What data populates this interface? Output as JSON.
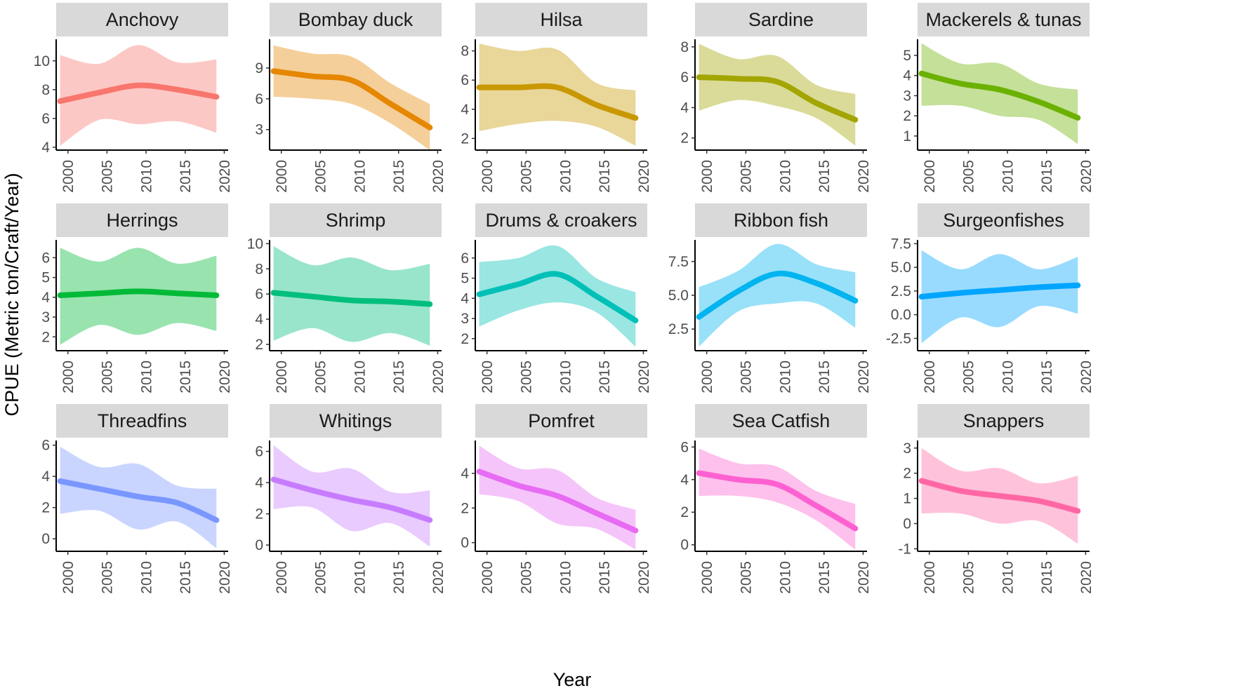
{
  "chart_data": {
    "type": "area",
    "figure": "faceted smoothed trends with confidence ribbons",
    "xlabel": "Year",
    "ylabel": "CPUE (Metric ton/Craft/Year)",
    "x_ticks": [
      "2000",
      "2005",
      "2010",
      "2015",
      "2020"
    ],
    "xlim": [
      1998.5,
      2020.5
    ],
    "strip_background": "#d9d9d9",
    "panels": [
      {
        "name": "Anchovy",
        "color": "#F8766D",
        "ylim": [
          3.8,
          11.5
        ],
        "yticks": [
          4,
          6,
          8,
          10
        ],
        "x": [
          1999,
          2004,
          2009,
          2014,
          2019
        ],
        "fit": [
          7.2,
          7.8,
          8.3,
          8.0,
          7.5
        ],
        "lower": [
          4.1,
          5.9,
          5.6,
          5.8,
          5.0
        ],
        "upper": [
          10.4,
          9.8,
          11.1,
          9.9,
          10.1
        ]
      },
      {
        "name": "Bombay duck",
        "color": "#E58700",
        "ylim": [
          1.0,
          11.8
        ],
        "yticks": [
          3,
          6,
          9
        ],
        "x": [
          1999,
          2004,
          2009,
          2014,
          2019
        ],
        "fit": [
          8.7,
          8.2,
          7.8,
          5.5,
          3.2
        ],
        "lower": [
          6.2,
          6.0,
          5.5,
          3.6,
          1.0
        ],
        "upper": [
          11.2,
          10.4,
          10.1,
          7.5,
          5.5
        ]
      },
      {
        "name": "Hilsa",
        "color": "#C99800",
        "ylim": [
          1.2,
          8.8
        ],
        "yticks": [
          2,
          4,
          6,
          8
        ],
        "x": [
          1999,
          2004,
          2009,
          2014,
          2019
        ],
        "fit": [
          5.5,
          5.5,
          5.5,
          4.3,
          3.4
        ],
        "lower": [
          2.5,
          3.0,
          3.2,
          2.8,
          1.5
        ],
        "upper": [
          8.5,
          8.0,
          8.1,
          5.8,
          5.3
        ]
      },
      {
        "name": "Sardine",
        "color": "#A3A500",
        "ylim": [
          1.2,
          8.5
        ],
        "yticks": [
          2,
          4,
          6,
          8
        ],
        "x": [
          1999,
          2004,
          2009,
          2014,
          2019
        ],
        "fit": [
          6.0,
          5.9,
          5.7,
          4.3,
          3.2
        ],
        "lower": [
          3.8,
          4.5,
          4.1,
          3.3,
          1.5
        ],
        "upper": [
          8.2,
          7.2,
          7.4,
          5.5,
          4.9
        ]
      },
      {
        "name": "Mackerels & tunas",
        "color": "#6BB100",
        "ylim": [
          0.3,
          5.8
        ],
        "yticks": [
          1,
          2,
          3,
          4,
          5
        ],
        "x": [
          1999,
          2004,
          2009,
          2014,
          2019
        ],
        "fit": [
          4.1,
          3.6,
          3.3,
          2.7,
          1.9
        ],
        "lower": [
          2.5,
          2.5,
          2.0,
          1.8,
          0.6
        ],
        "upper": [
          5.6,
          4.6,
          4.6,
          3.6,
          3.3
        ]
      },
      {
        "name": "Herrings",
        "color": "#00BA38",
        "ylim": [
          1.3,
          6.9
        ],
        "yticks": [
          2,
          3,
          4,
          5,
          6
        ],
        "x": [
          1999,
          2004,
          2009,
          2014,
          2019
        ],
        "fit": [
          4.1,
          4.2,
          4.3,
          4.2,
          4.1
        ],
        "lower": [
          1.6,
          2.6,
          2.1,
          2.7,
          2.3
        ],
        "upper": [
          6.5,
          5.8,
          6.5,
          5.7,
          6.1
        ]
      },
      {
        "name": "Shrimp",
        "color": "#00BF7D",
        "ylim": [
          1.5,
          10.3
        ],
        "yticks": [
          2,
          4,
          6,
          8,
          10
        ],
        "x": [
          1999,
          2004,
          2009,
          2014,
          2019
        ],
        "fit": [
          6.1,
          5.8,
          5.5,
          5.4,
          5.2
        ],
        "lower": [
          2.3,
          3.3,
          2.2,
          2.9,
          1.9
        ],
        "upper": [
          9.8,
          8.3,
          8.9,
          7.9,
          8.4
        ]
      },
      {
        "name": "Drums & croakers",
        "color": "#00C0B8",
        "ylim": [
          1.4,
          6.9
        ],
        "yticks": [
          2,
          3,
          4,
          5,
          6
        ],
        "x": [
          1999,
          2004,
          2009,
          2014,
          2019
        ],
        "fit": [
          4.2,
          4.7,
          5.2,
          4.1,
          2.9
        ],
        "lower": [
          2.6,
          3.4,
          3.8,
          3.3,
          1.6
        ],
        "upper": [
          5.8,
          6.0,
          6.6,
          5.0,
          4.3
        ]
      },
      {
        "name": "Ribbon fish",
        "color": "#00B4EF",
        "ylim": [
          0.9,
          9.1
        ],
        "yticks": [
          2.5,
          5.0,
          7.5
        ],
        "x": [
          1999,
          2004,
          2009,
          2014,
          2019
        ],
        "fit": [
          3.4,
          5.3,
          6.6,
          5.9,
          4.6
        ],
        "lower": [
          1.2,
          3.8,
          4.4,
          4.4,
          2.6
        ],
        "upper": [
          5.6,
          6.8,
          8.8,
          7.3,
          6.7
        ]
      },
      {
        "name": "Surgeonfishes",
        "color": "#00A5FF",
        "ylim": [
          -3.8,
          7.9
        ],
        "yticks": [
          -2.5,
          0.0,
          2.5,
          5.0,
          7.5
        ],
        "x": [
          1999,
          2004,
          2009,
          2014,
          2019
        ],
        "fit": [
          1.9,
          2.3,
          2.6,
          2.9,
          3.1
        ],
        "lower": [
          -3.0,
          -0.3,
          -1.3,
          0.9,
          0.1
        ],
        "upper": [
          6.8,
          4.8,
          6.4,
          4.8,
          6.1
        ]
      },
      {
        "name": "Threadfins",
        "color": "#7997FF",
        "ylim": [
          -0.8,
          6.3
        ],
        "yticks": [
          0,
          2,
          4,
          6
        ],
        "x": [
          1999,
          2004,
          2009,
          2014,
          2019
        ],
        "fit": [
          3.7,
          3.2,
          2.7,
          2.3,
          1.2
        ],
        "lower": [
          1.6,
          1.8,
          0.6,
          1.1,
          -0.6
        ],
        "upper": [
          5.9,
          4.6,
          4.8,
          3.4,
          3.2
        ]
      },
      {
        "name": "Whitings",
        "color": "#C77CFF",
        "ylim": [
          -0.4,
          6.7
        ],
        "yticks": [
          0,
          2,
          4,
          6
        ],
        "x": [
          1999,
          2004,
          2009,
          2014,
          2019
        ],
        "fit": [
          4.2,
          3.5,
          2.9,
          2.4,
          1.6
        ],
        "lower": [
          2.3,
          2.4,
          0.9,
          1.4,
          -0.1
        ],
        "upper": [
          6.4,
          4.7,
          4.9,
          3.4,
          3.5
        ]
      },
      {
        "name": "Pomfret",
        "color": "#E76BF3",
        "ylim": [
          -0.5,
          5.9
        ],
        "yticks": [
          0,
          2,
          4
        ],
        "x": [
          1999,
          2004,
          2009,
          2014,
          2019
        ],
        "fit": [
          4.1,
          3.3,
          2.7,
          1.7,
          0.7
        ],
        "lower": [
          2.8,
          2.4,
          1.1,
          0.8,
          -0.4
        ],
        "upper": [
          5.6,
          4.3,
          4.2,
          2.6,
          1.9
        ]
      },
      {
        "name": "Sea Catfish",
        "color": "#FD61D1",
        "ylim": [
          -0.4,
          6.4
        ],
        "yticks": [
          0,
          2,
          4,
          6
        ],
        "x": [
          1999,
          2004,
          2009,
          2014,
          2019
        ],
        "fit": [
          4.4,
          4.0,
          3.7,
          2.4,
          1.0
        ],
        "lower": [
          3.0,
          3.0,
          2.6,
          1.5,
          -0.3
        ],
        "upper": [
          5.9,
          5.0,
          4.8,
          3.3,
          2.5
        ]
      },
      {
        "name": "Snappers",
        "color": "#FF67A4",
        "ylim": [
          -1.1,
          3.3
        ],
        "yticks": [
          -1,
          0,
          1,
          2,
          3
        ],
        "x": [
          1999,
          2004,
          2009,
          2014,
          2019
        ],
        "fit": [
          1.7,
          1.3,
          1.1,
          0.9,
          0.5
        ],
        "lower": [
          0.4,
          0.4,
          0.0,
          0.1,
          -0.8
        ],
        "upper": [
          3.0,
          2.1,
          2.2,
          1.6,
          1.9
        ]
      }
    ]
  }
}
